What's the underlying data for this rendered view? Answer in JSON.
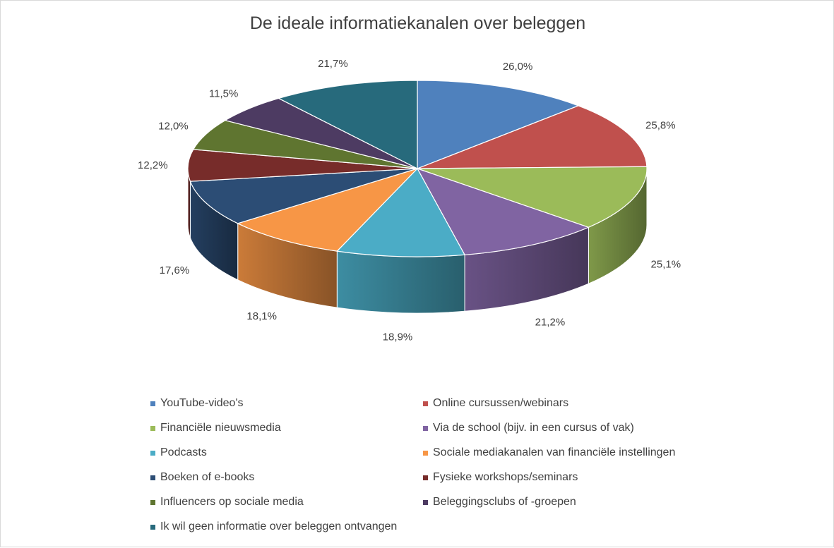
{
  "chart_data": {
    "type": "pie",
    "title": "De ideale informatiekanalen over beleggen",
    "series": [
      {
        "name": "YouTube-video's",
        "value": 26.0,
        "label": "26,0%",
        "color": "#4F81BD"
      },
      {
        "name": "Online cursussen/webinars",
        "value": 25.8,
        "label": "25,8%",
        "color": "#C0504D"
      },
      {
        "name": "Financiële nieuwsmedia",
        "value": 25.1,
        "label": "25,1%",
        "color": "#9BBB59"
      },
      {
        "name": "Via de school (bijv. in een cursus of vak)",
        "value": 21.2,
        "label": "21,2%",
        "color": "#8064A2"
      },
      {
        "name": "Podcasts",
        "value": 18.9,
        "label": "18,9%",
        "color": "#4BACC6"
      },
      {
        "name": "Sociale mediakanalen van financiële instellingen",
        "value": 18.1,
        "label": "18,1%",
        "color": "#F79646"
      },
      {
        "name": "Boeken of e-books",
        "value": 17.6,
        "label": "17,6%",
        "color": "#2C4D75"
      },
      {
        "name": "Fysieke workshops/seminars",
        "value": 12.2,
        "label": "12,2%",
        "color": "#772C2A"
      },
      {
        "name": "Influencers op sociale media",
        "value": 12.0,
        "label": "12,0%",
        "color": "#5F7530"
      },
      {
        "name": "Beleggingsclubs of -groepen",
        "value": 11.5,
        "label": "11,5%",
        "color": "#4D3B62"
      },
      {
        "name": "Ik wil geen informatie over beleggen ontvangen",
        "value": 21.7,
        "label": "21,7%",
        "color": "#276A7C"
      }
    ],
    "legend_position": "bottom"
  }
}
